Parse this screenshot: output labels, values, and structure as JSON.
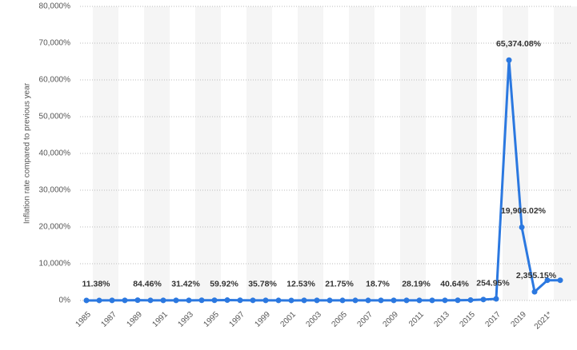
{
  "chart_data": {
    "type": "line",
    "y_label": "Inflation rate compared to previous year",
    "categories": [
      "1985",
      null,
      "1987",
      null,
      "1989",
      null,
      "1991",
      null,
      "1993",
      null,
      "1995",
      null,
      "1997",
      null,
      "1999",
      null,
      "2001",
      null,
      "2003",
      null,
      "2005",
      null,
      "2007",
      null,
      "2009",
      null,
      "2011",
      null,
      "2013",
      null,
      "2015",
      null,
      "2017",
      null,
      "2019",
      null,
      "2021*",
      null
    ],
    "series": [
      {
        "name": "Inflation rate",
        "color": "#2b78e0",
        "values": [
          11.38,
          11.5,
          28.1,
          29.5,
          84.46,
          40.7,
          34.2,
          31.42,
          38.1,
          60.8,
          59.92,
          99.9,
          50,
          35.78,
          23.6,
          16.2,
          12.53,
          22.4,
          31.1,
          21.75,
          16,
          13.7,
          18.7,
          31.4,
          27.1,
          28.19,
          26.1,
          21.1,
          40.64,
          62.2,
          121.7,
          254.95,
          438.1,
          65374.08,
          19906.02,
          2355.15,
          5500,
          5500
        ],
        "value_labels": [
          "11.38%",
          null,
          null,
          null,
          "84.46%",
          null,
          null,
          "31.42%",
          null,
          null,
          "59.92%",
          null,
          null,
          "35.78%",
          null,
          null,
          "12.53%",
          null,
          null,
          "21.75%",
          null,
          null,
          "18.7%",
          null,
          null,
          "28.19%",
          null,
          null,
          "40.64%",
          null,
          null,
          "254.95%",
          null,
          "65,374.08%",
          "19,906.02%",
          "2,355.15%",
          null,
          null
        ]
      }
    ],
    "ylim": [
      0,
      80000
    ],
    "yticks": [
      {
        "value": 0,
        "label": "0%"
      },
      {
        "value": 10000,
        "label": "10,000%"
      },
      {
        "value": 20000,
        "label": "20,000%"
      },
      {
        "value": 30000,
        "label": "30,000%"
      },
      {
        "value": 40000,
        "label": "40,000%"
      },
      {
        "value": 50000,
        "label": "50,000%"
      },
      {
        "value": 60000,
        "label": "60,000%"
      },
      {
        "value": 70000,
        "label": "70,000%"
      },
      {
        "value": 80000,
        "label": "80,000%"
      }
    ],
    "grid": true
  }
}
